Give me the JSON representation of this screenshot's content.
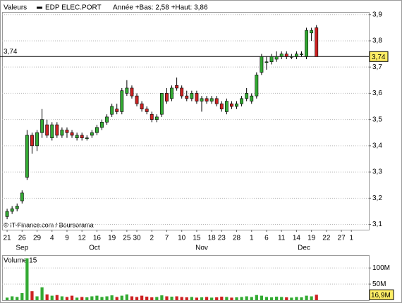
{
  "chart_data": [
    {
      "type": "candlestick",
      "top_label": "Valeurs",
      "annotation": "Année +Bas: 2,58 +Haut: 3,86",
      "source": "© IT-Finance.com / Boursorama",
      "series_name": "EDP ELEC.PORT",
      "colors": {
        "up": "#33aa33",
        "down": "#cc2222"
      },
      "open": [
        3.13,
        3.15,
        3.16,
        3.19,
        3.28,
        3.44,
        3.4,
        3.45,
        3.48,
        3.43,
        3.48,
        3.44,
        3.46,
        3.45,
        3.43,
        3.44,
        3.43,
        3.44,
        3.45,
        3.47,
        3.49,
        3.52,
        3.54,
        3.53,
        3.6,
        3.62,
        3.59,
        3.56,
        3.54,
        3.52,
        3.5,
        3.52,
        3.6,
        3.58,
        3.63,
        3.62,
        3.59,
        3.58,
        3.6,
        3.57,
        3.58,
        3.57,
        3.58,
        3.56,
        3.53,
        3.56,
        3.55,
        3.56,
        3.58,
        3.57,
        3.59,
        3.68,
        3.72,
        3.72,
        3.73,
        3.74,
        3.75,
        3.74,
        3.74,
        3.75,
        3.74,
        3.83,
        3.85
      ],
      "high": [
        3.16,
        3.17,
        3.18,
        3.23,
        3.46,
        3.45,
        3.46,
        3.54,
        3.5,
        3.49,
        3.49,
        3.47,
        3.47,
        3.46,
        3.45,
        3.45,
        3.44,
        3.46,
        3.48,
        3.5,
        3.52,
        3.56,
        3.56,
        3.62,
        3.65,
        3.63,
        3.6,
        3.57,
        3.55,
        3.53,
        3.52,
        3.6,
        3.62,
        3.63,
        3.66,
        3.63,
        3.61,
        3.61,
        3.61,
        3.59,
        3.59,
        3.59,
        3.59,
        3.57,
        3.58,
        3.57,
        3.57,
        3.59,
        3.62,
        3.6,
        3.68,
        3.75,
        3.74,
        3.75,
        3.76,
        3.76,
        3.76,
        3.75,
        3.76,
        3.76,
        3.85,
        3.85,
        3.86
      ],
      "low": [
        3.12,
        3.14,
        3.15,
        3.18,
        3.27,
        3.37,
        3.38,
        3.43,
        3.43,
        3.42,
        3.43,
        3.43,
        3.43,
        3.43,
        3.42,
        3.42,
        3.42,
        3.43,
        3.44,
        3.46,
        3.48,
        3.51,
        3.52,
        3.52,
        3.59,
        3.58,
        3.55,
        3.53,
        3.52,
        3.49,
        3.49,
        3.51,
        3.56,
        3.57,
        3.61,
        3.58,
        3.57,
        3.57,
        3.56,
        3.53,
        3.56,
        3.56,
        3.55,
        3.53,
        3.52,
        3.54,
        3.54,
        3.55,
        3.57,
        3.56,
        3.58,
        3.67,
        3.69,
        3.71,
        3.72,
        3.73,
        3.73,
        3.73,
        3.73,
        3.74,
        3.73,
        3.8,
        3.74
      ],
      "close": [
        3.15,
        3.16,
        3.17,
        3.22,
        3.44,
        3.4,
        3.45,
        3.5,
        3.44,
        3.48,
        3.44,
        3.46,
        3.45,
        3.44,
        3.44,
        3.43,
        3.43,
        3.45,
        3.47,
        3.49,
        3.51,
        3.55,
        3.53,
        3.61,
        3.62,
        3.59,
        3.56,
        3.54,
        3.53,
        3.5,
        3.51,
        3.6,
        3.57,
        3.62,
        3.62,
        3.59,
        3.58,
        3.6,
        3.57,
        3.58,
        3.57,
        3.58,
        3.56,
        3.54,
        3.57,
        3.55,
        3.56,
        3.58,
        3.6,
        3.59,
        3.67,
        3.74,
        3.72,
        3.74,
        3.74,
        3.75,
        3.74,
        3.74,
        3.75,
        3.75,
        3.84,
        3.84,
        3.74
      ],
      "last_value": 3.74,
      "last_value_label": "3,74",
      "xlim": [
        -1,
        72.5
      ],
      "xticks": [
        {
          "value": 0,
          "label": "21"
        },
        {
          "value": 3,
          "label": "26"
        },
        {
          "value": 6,
          "label": "29"
        },
        {
          "value": 9,
          "label": "4"
        },
        {
          "value": 12,
          "label": "9"
        },
        {
          "value": 15,
          "label": "12"
        },
        {
          "value": 18,
          "label": "16"
        },
        {
          "value": 21,
          "label": "19"
        },
        {
          "value": 24,
          "label": "25"
        },
        {
          "value": 26,
          "label": "30"
        },
        {
          "value": 29,
          "label": "2"
        },
        {
          "value": 32,
          "label": "7"
        },
        {
          "value": 35,
          "label": "10"
        },
        {
          "value": 38,
          "label": "15"
        },
        {
          "value": 41,
          "label": "18"
        },
        {
          "value": 43,
          "label": "23"
        },
        {
          "value": 46,
          "label": "28"
        },
        {
          "value": 49,
          "label": "1"
        },
        {
          "value": 52,
          "label": "6"
        },
        {
          "value": 55,
          "label": "11"
        },
        {
          "value": 58,
          "label": "14"
        },
        {
          "value": 61,
          "label": "19"
        },
        {
          "value": 64,
          "label": "22"
        },
        {
          "value": 67,
          "label": "27"
        },
        {
          "value": 69,
          "label": "1"
        }
      ],
      "xmonths": [
        {
          "value": 3,
          "label": "Sep"
        },
        {
          "value": 17.5,
          "label": "Oct"
        },
        {
          "value": 39,
          "label": "Nov"
        },
        {
          "value": 59.5,
          "label": "Dec"
        }
      ],
      "ylim": [
        3.08,
        3.91
      ],
      "yticks": [
        {
          "value": 3.1,
          "label": "3,1"
        },
        {
          "value": 3.2,
          "label": "3,2"
        },
        {
          "value": 3.3,
          "label": "3,3"
        },
        {
          "value": 3.4,
          "label": "3,4"
        },
        {
          "value": 3.5,
          "label": "3,5"
        },
        {
          "value": 3.6,
          "label": "3,6"
        },
        {
          "value": 3.7,
          "label": "3,7"
        },
        {
          "value": 3.8,
          "label": "3,8"
        },
        {
          "value": 3.9,
          "label": "3,9"
        }
      ],
      "grid": true
    },
    {
      "type": "bar",
      "title": "Volume 15",
      "values": [
        8,
        12,
        10,
        22,
        130,
        28,
        12,
        40,
        18,
        14,
        16,
        12,
        10,
        14,
        8,
        10,
        9,
        12,
        14,
        10,
        12,
        15,
        10,
        14,
        18,
        12,
        10,
        14,
        11,
        9,
        10,
        15,
        12,
        11,
        12,
        10,
        9,
        10,
        8,
        9,
        10,
        8,
        9,
        11,
        10,
        8,
        9,
        10,
        12,
        10,
        16,
        14,
        10,
        9,
        11,
        10,
        9,
        8,
        10,
        9,
        14,
        12,
        16.9
      ],
      "last_value": 16.9,
      "last_value_label": "16,9M",
      "xlim": [
        -1,
        72.5
      ],
      "ylim": [
        0,
        140
      ],
      "yticks": [
        {
          "value": 50,
          "label": "50M"
        },
        {
          "value": 100,
          "label": "100M"
        }
      ],
      "grid": true
    }
  ]
}
